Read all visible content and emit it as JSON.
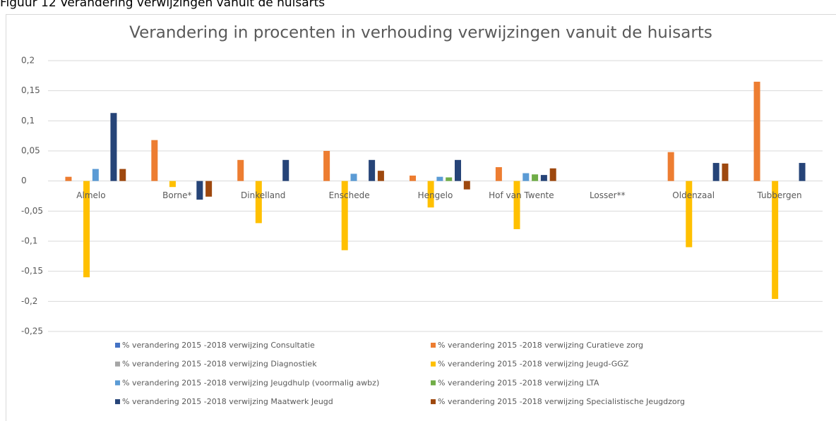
{
  "caption": "Figuur 12 Verandering verwijzingen vanuit de huisarts",
  "chart_data": {
    "type": "bar",
    "title": "Verandering in procenten in verhouding verwijzingen vanuit de huisarts",
    "categories": [
      "Almelo",
      "Borne*",
      "Dinkelland",
      "Enschede",
      "Hengelo",
      "Hof van Twente",
      "Losser**",
      "Oldenzaal",
      "Tubbergen"
    ],
    "series": [
      {
        "name": "% verandering 2015 -2018 verwijzing Consultatie",
        "color": "#4472c4",
        "values": [
          null,
          null,
          null,
          null,
          null,
          null,
          null,
          null,
          null
        ]
      },
      {
        "name": "% verandering 2015 -2018 verwijzing Curatieve zorg",
        "color": "#ed7d31",
        "values": [
          0.007,
          0.068,
          0.035,
          0.05,
          0.009,
          0.023,
          null,
          0.048,
          0.165
        ]
      },
      {
        "name": "% verandering 2015 -2018 verwijzing Diagnostiek",
        "color": "#a5a5a5",
        "values": [
          null,
          null,
          null,
          null,
          null,
          null,
          null,
          null,
          null
        ]
      },
      {
        "name": "% verandering 2015 -2018 verwijzing Jeugd-GGZ",
        "color": "#ffc000",
        "values": [
          -0.16,
          -0.01,
          -0.07,
          -0.115,
          -0.044,
          -0.08,
          null,
          -0.11,
          -0.196
        ]
      },
      {
        "name": "% verandering 2015 -2018 verwijzing Jeugdhulp (voormalig awbz)",
        "color": "#5b9bd5",
        "values": [
          0.02,
          null,
          null,
          0.012,
          0.007,
          0.013,
          null,
          null,
          null
        ]
      },
      {
        "name": "% verandering 2015 -2018 verwijzing LTA",
        "color": "#70ad47",
        "values": [
          null,
          null,
          null,
          null,
          0.006,
          0.011,
          null,
          null,
          null
        ]
      },
      {
        "name": "% verandering 2015 -2018 verwijzing Maatwerk Jeugd",
        "color": "#264478",
        "values": [
          0.113,
          -0.031,
          0.035,
          0.035,
          0.035,
          0.01,
          null,
          0.03,
          0.03
        ]
      },
      {
        "name": "% verandering 2015 -2018 verwijzing Specialistische Jeugdzorg",
        "color": "#9e480e",
        "values": [
          0.02,
          -0.026,
          null,
          0.017,
          -0.014,
          0.021,
          null,
          0.029,
          null
        ]
      }
    ],
    "ylim": [
      -0.25,
      0.2
    ],
    "yticks": [
      {
        "value": -0.25,
        "label": "-0,25"
      },
      {
        "value": -0.2,
        "label": "-0,2"
      },
      {
        "value": -0.15,
        "label": "-0,15"
      },
      {
        "value": -0.1,
        "label": "-0,1"
      },
      {
        "value": -0.05,
        "label": "-0,05"
      },
      0,
      {
        "value": 0.05,
        "label": "0,05"
      },
      {
        "value": 0.1,
        "label": "0,1"
      },
      {
        "value": 0.15,
        "label": "0,15"
      },
      {
        "value": 0.2,
        "label": "0,2"
      }
    ],
    "grid": true
  }
}
